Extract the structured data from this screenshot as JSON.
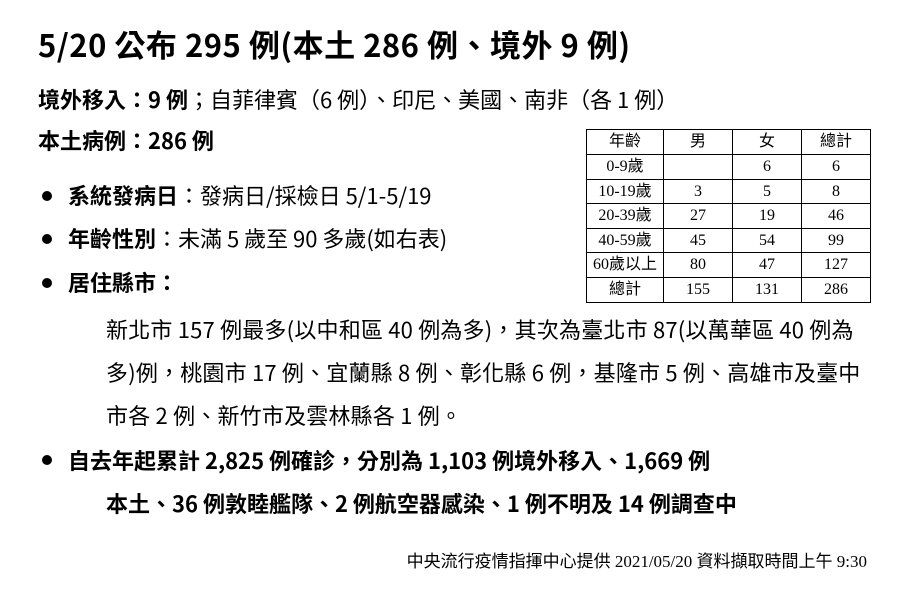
{
  "title": "5/20 公布 295 例(本土 286 例、境外 9 例)",
  "imported": {
    "lead": "境外移入：9 例",
    "rest": "；自菲律賓（6 例）、印尼、美國、南非（各 1 例）"
  },
  "local_lead": "本土病例：286 例",
  "bullets": {
    "onset": {
      "label": "系統發病日",
      "value": "：發病日/採檢日 5/1-5/19"
    },
    "age": {
      "label": "年齡性別",
      "value": "：未滿 5 歲至 90 多歲(如右表)"
    },
    "county": {
      "label": "居住縣市："
    }
  },
  "county_detail": "新北市 157 例最多(以中和區 40 例為多)，其次為臺北市 87(以萬華區 40 例為多)例，桃園市 17 例、宜蘭縣 8 例、彰化縣 6 例，基隆市 5 例、高雄市及臺中市各 2 例、新竹市及雲林縣各 1 例。",
  "cumulative_line1": "自去年起累計 2,825 例確診，分別為 1,103 例境外移入、1,669 例",
  "cumulative_line2": "本土、36 例敦睦艦隊、2 例航空器感染、1 例不明及 14 例調查中",
  "age_table": {
    "headers": [
      "年齡",
      "男",
      "女",
      "總計"
    ],
    "rows": [
      [
        "0-9歲",
        "",
        "6",
        "6"
      ],
      [
        "10-19歲",
        "3",
        "5",
        "8"
      ],
      [
        "20-39歲",
        "27",
        "19",
        "46"
      ],
      [
        "40-59歲",
        "45",
        "54",
        "99"
      ],
      [
        "60歲以上",
        "80",
        "47",
        "127"
      ],
      [
        "總計",
        "155",
        "131",
        "286"
      ]
    ]
  },
  "footer": "中央流行疫情指揮中心提供  2021/05/20  資料擷取時間上午 9:30",
  "colors": {
    "text": "#000000",
    "background": "#ffffff",
    "table_border": "#000000"
  },
  "typography": {
    "title_pt": 31,
    "body_pt": 22,
    "table_pt": 16,
    "footer_pt": 17,
    "bold_weight": 700,
    "normal_weight": 400
  }
}
